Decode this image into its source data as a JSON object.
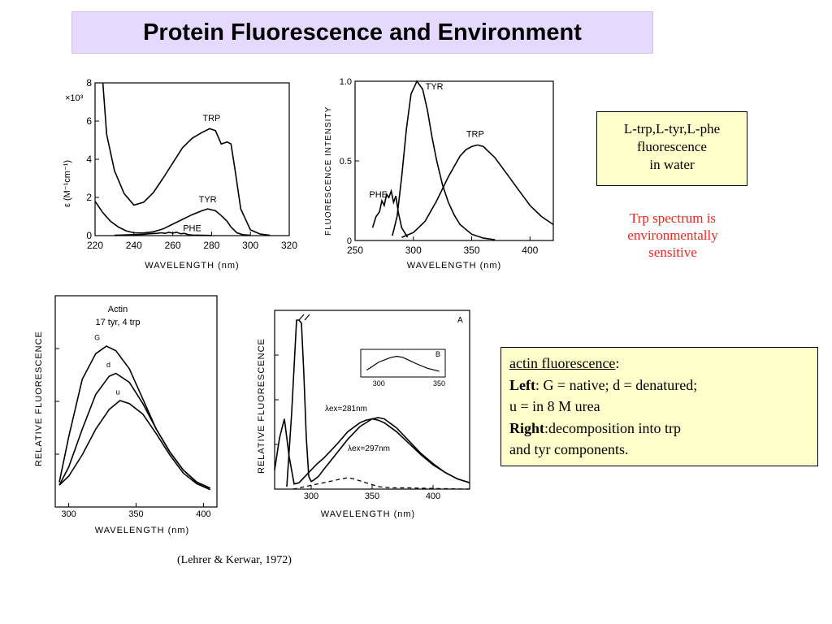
{
  "title": "Protein Fluorescence and Environment",
  "caption_water": {
    "line1": "L-trp,L-tyr,L-phe",
    "line2": "fluorescence",
    "line3": "in water"
  },
  "note": {
    "line1": "Trp spectrum is",
    "line2": "environmentally",
    "line3": "sensitive"
  },
  "caption_actin": {
    "head": "actin fluorescence",
    "head_colon": ":",
    "left_label": "Left",
    "left_text": ": G = native; d = denatured;",
    "line3": "u = in 8 M urea",
    "right_label": "Right",
    "right_text": ":decomposition into trp",
    "line5": "and tyr components."
  },
  "citation": "(Lehrer & Kerwar, 1972)",
  "chart_data": [
    {
      "type": "line",
      "title": "",
      "xlabel": "WAVELENGTH (nm)",
      "ylabel": "ε (M⁻¹cm⁻¹)",
      "y_multiplier": "×10³",
      "xlim": [
        220,
        320
      ],
      "ylim": [
        0,
        8
      ],
      "xticks": [
        "220",
        "240",
        "260",
        "280",
        "300",
        "320"
      ],
      "yticks": [
        "0",
        "2",
        "4",
        "6",
        "8"
      ],
      "series": [
        {
          "name": "TRP",
          "x": [
            224,
            226,
            230,
            235,
            240,
            245,
            250,
            255,
            260,
            265,
            270,
            275,
            279,
            282,
            285,
            288,
            290,
            292,
            295,
            300,
            305,
            310
          ],
          "y": [
            8,
            5.3,
            3.4,
            2.2,
            1.6,
            1.75,
            2.25,
            3.0,
            3.8,
            4.6,
            5.1,
            5.4,
            5.6,
            5.5,
            4.8,
            4.9,
            4.8,
            3.5,
            1.4,
            0.3,
            0.08,
            0.02
          ]
        },
        {
          "name": "TYR",
          "x": [
            220,
            224,
            228,
            232,
            236,
            240,
            245,
            250,
            255,
            260,
            265,
            270,
            275,
            278,
            282,
            285,
            288,
            290,
            293,
            296,
            300
          ],
          "y": [
            1.8,
            1.2,
            0.75,
            0.45,
            0.25,
            0.15,
            0.14,
            0.2,
            0.35,
            0.6,
            0.85,
            1.1,
            1.3,
            1.4,
            1.3,
            1.05,
            0.75,
            0.45,
            0.15,
            0.05,
            0.02
          ]
        },
        {
          "name": "PHE",
          "x": [
            230,
            240,
            245,
            248,
            252,
            254,
            256,
            258,
            260,
            262,
            264,
            266,
            268,
            270,
            275,
            280
          ],
          "y": [
            0.02,
            0.05,
            0.07,
            0.1,
            0.12,
            0.15,
            0.12,
            0.17,
            0.13,
            0.18,
            0.1,
            0.12,
            0.05,
            0.03,
            0.02,
            0.01
          ]
        }
      ]
    },
    {
      "type": "line",
      "title": "",
      "xlabel": "WAVELENGTH (nm)",
      "ylabel": "FLUORESCENCE INTENSITY",
      "xlim": [
        250,
        420
      ],
      "ylim": [
        0,
        1.0
      ],
      "xticks": [
        "250",
        "300",
        "350",
        "400"
      ],
      "yticks": [
        "0",
        "0.5",
        "1.0"
      ],
      "series": [
        {
          "name": "PHE",
          "x": [
            265,
            268,
            271,
            273,
            275,
            277,
            279,
            281,
            283,
            285,
            287,
            290,
            295
          ],
          "y": [
            0.08,
            0.15,
            0.18,
            0.25,
            0.22,
            0.29,
            0.27,
            0.31,
            0.24,
            0.28,
            0.18,
            0.08,
            0.02
          ]
        },
        {
          "name": "TYR",
          "x": [
            282,
            286,
            290,
            294,
            298,
            303,
            308,
            312,
            316,
            320,
            325,
            330,
            335,
            340,
            350,
            360,
            370
          ],
          "y": [
            0.03,
            0.15,
            0.4,
            0.7,
            0.92,
            1.0,
            0.95,
            0.82,
            0.65,
            0.5,
            0.35,
            0.24,
            0.16,
            0.1,
            0.04,
            0.015,
            0.005
          ]
        },
        {
          "name": "TRP",
          "x": [
            290,
            300,
            310,
            320,
            330,
            340,
            345,
            350,
            355,
            360,
            370,
            380,
            390,
            400,
            410,
            420
          ],
          "y": [
            0.02,
            0.05,
            0.12,
            0.25,
            0.4,
            0.53,
            0.57,
            0.59,
            0.6,
            0.59,
            0.52,
            0.42,
            0.32,
            0.22,
            0.15,
            0.1
          ]
        }
      ]
    },
    {
      "type": "line",
      "title": "Actin",
      "subtitle": "17 tyr, 4 trp",
      "xlabel": "WAVELENGTH (nm)",
      "ylabel": "RELATIVE FLUORESCENCE",
      "xlim": [
        290,
        410
      ],
      "ylim": [
        0,
        1
      ],
      "xticks": [
        "300",
        "350",
        "400"
      ],
      "series": [
        {
          "name": "G",
          "x": [
            293,
            300,
            310,
            320,
            328,
            335,
            345,
            355,
            365,
            375,
            385,
            395,
            405
          ],
          "y": [
            0.1,
            0.4,
            0.78,
            0.95,
            1.0,
            0.97,
            0.85,
            0.65,
            0.45,
            0.3,
            0.18,
            0.1,
            0.06
          ]
        },
        {
          "name": "d",
          "x": [
            293,
            300,
            310,
            320,
            330,
            335,
            345,
            355,
            365,
            375,
            385,
            395,
            405
          ],
          "y": [
            0.08,
            0.2,
            0.45,
            0.68,
            0.8,
            0.82,
            0.76,
            0.62,
            0.45,
            0.3,
            0.18,
            0.1,
            0.06
          ]
        },
        {
          "name": "u",
          "x": [
            293,
            300,
            310,
            320,
            330,
            338,
            345,
            355,
            365,
            375,
            385,
            395,
            405
          ],
          "y": [
            0.08,
            0.14,
            0.28,
            0.45,
            0.58,
            0.64,
            0.62,
            0.55,
            0.42,
            0.28,
            0.16,
            0.09,
            0.05
          ]
        }
      ]
    },
    {
      "type": "line",
      "title": "",
      "panel_label": "A",
      "xlabel": "WAVELENGTH (nm)",
      "ylabel": "RELATIVE FLUORESCENCE",
      "xlim": [
        270,
        430
      ],
      "ylim": [
        0,
        1.4
      ],
      "xticks": [
        "300",
        "350",
        "400"
      ],
      "annotations": [
        "λex=281nm",
        "λex=297nm"
      ],
      "series": [
        {
          "name": "λex=281nm",
          "x": [
            270,
            274,
            278,
            282,
            286,
            290,
            295,
            300,
            305,
            310,
            320,
            330,
            340,
            345,
            350,
            355,
            360,
            370,
            380,
            390,
            400,
            410,
            420,
            430
          ],
          "y": [
            0.15,
            0.4,
            0.55,
            0.25,
            0.04,
            0.05,
            0.1,
            0.15,
            0.2,
            0.24,
            0.34,
            0.45,
            0.52,
            0.54,
            0.55,
            0.54,
            0.52,
            0.45,
            0.36,
            0.27,
            0.19,
            0.13,
            0.08,
            0.05
          ]
        },
        {
          "name": "λex=297nm",
          "x": [
            280,
            284,
            288,
            290,
            292,
            294,
            296,
            298,
            300,
            302,
            306,
            310,
            320,
            330,
            340,
            350,
            355,
            360,
            370,
            380,
            390,
            400,
            410,
            420,
            430
          ],
          "y": [
            0.02,
            0.6,
            1.4,
            1.4,
            1.3,
            0.9,
            0.4,
            0.1,
            0.06,
            0.07,
            0.1,
            0.15,
            0.27,
            0.39,
            0.49,
            0.55,
            0.56,
            0.55,
            0.48,
            0.38,
            0.28,
            0.2,
            0.13,
            0.08,
            0.05
          ]
        },
        {
          "name": "tyr component",
          "x": [
            285,
            295,
            305,
            315,
            325,
            330,
            335,
            345,
            355,
            365,
            380,
            400,
            430
          ],
          "y": [
            0.0,
            0.02,
            0.04,
            0.06,
            0.08,
            0.09,
            0.08,
            0.05,
            0.02,
            0.01,
            0.01,
            0.005,
            0.0
          ]
        },
        {
          "name": "inset B",
          "x": [
            290,
            300,
            310,
            315,
            320,
            330,
            340,
            350
          ],
          "y": [
            0.3,
            0.65,
            0.85,
            0.9,
            0.85,
            0.6,
            0.38,
            0.25
          ]
        }
      ],
      "inset": {
        "label": "B",
        "xticks": [
          "300",
          "350"
        ]
      }
    }
  ]
}
